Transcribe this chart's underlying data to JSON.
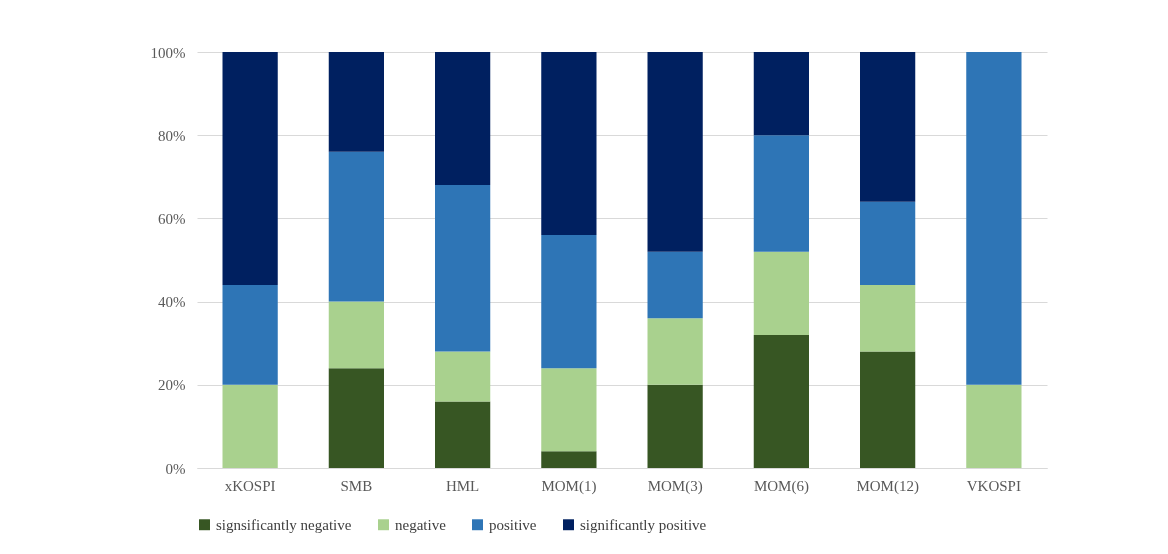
{
  "chart_data": {
    "type": "bar",
    "stacked": true,
    "categories": [
      "xKOSPI",
      "SMB",
      "HML",
      "MOM(1)",
      "MOM(3)",
      "MOM(6)",
      "MOM(12)",
      "VKOSPI"
    ],
    "series": [
      {
        "name": "signsificantly negative",
        "color": "#375623",
        "values": [
          0,
          24,
          16,
          4,
          20,
          32,
          28,
          0
        ]
      },
      {
        "name": "negative",
        "color": "#a9d18e",
        "values": [
          20,
          16,
          12,
          20,
          16,
          20,
          16,
          20
        ]
      },
      {
        "name": "positive",
        "color": "#2e75b6",
        "values": [
          24,
          36,
          40,
          32,
          16,
          28,
          20,
          80
        ]
      },
      {
        "name": "significantly positive",
        "color": "#002060",
        "values": [
          56,
          24,
          32,
          44,
          48,
          20,
          36,
          0
        ]
      }
    ],
    "ylim": [
      0,
      100
    ],
    "yticks": [
      {
        "value": 0,
        "label": "0%"
      },
      {
        "value": 20,
        "label": "20%"
      },
      {
        "value": 40,
        "label": "40%"
      },
      {
        "value": 60,
        "label": "60%"
      },
      {
        "value": 80,
        "label": "80%"
      },
      {
        "value": 100,
        "label": "100%"
      }
    ],
    "grid": "y",
    "legend": "bottom"
  }
}
